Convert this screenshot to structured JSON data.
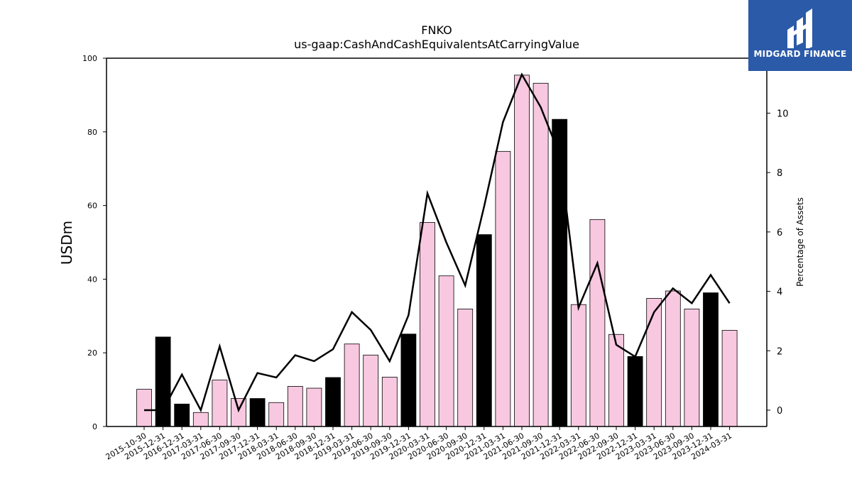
{
  "chart_data": {
    "type": "bar",
    "title": "FNKO",
    "subtitle": "us-gaap:CashAndCashEquivalentsAtCarryingValue",
    "ylabel": "USDm",
    "y2label": "Percentage of Assets",
    "ylim": [
      0,
      100
    ],
    "y2lim": [
      -0.55,
      11.85
    ],
    "yticks": [
      0,
      20,
      40,
      60,
      80,
      100
    ],
    "y2ticks": [
      0,
      2,
      4,
      6,
      8,
      10
    ],
    "categories": [
      "2015-10-30",
      "2015-12-31",
      "2016-12-31",
      "2017-03-31",
      "2017-06-30",
      "2017-09-30",
      "2017-12-31",
      "2018-03-31",
      "2018-06-30",
      "2018-09-30",
      "2018-12-31",
      "2019-03-31",
      "2019-06-30",
      "2019-09-30",
      "2019-12-31",
      "2020-03-31",
      "2020-06-30",
      "2020-09-30",
      "2020-12-31",
      "2021-03-31",
      "2021-06-30",
      "2021-09-30",
      "2021-12-31",
      "2022-03-31",
      "2022-06-30",
      "2022-09-30",
      "2022-12-31",
      "2023-03-31",
      "2023-06-30",
      "2023-09-30",
      "2023-12-31",
      "2024-03-31"
    ],
    "series": [
      {
        "values": [
          10.1,
          24.3,
          6.1,
          3.8,
          12.6,
          7.6,
          7.6,
          6.5,
          10.9,
          10.4,
          13.3,
          22.4,
          19.4,
          13.4,
          25.1,
          55.4,
          40.9,
          31.9,
          52.1,
          74.7,
          95.4,
          93.2,
          83.4,
          33.1,
          56.2,
          25.0,
          19.0,
          34.8,
          36.8,
          31.9,
          36.3,
          26.1
        ],
        "colors": [
          "#f8c8e0",
          "#000000",
          "#000000",
          "#f8c8e0",
          "#f8c8e0",
          "#f8c8e0",
          "#000000",
          "#f8c8e0",
          "#f8c8e0",
          "#f8c8e0",
          "#000000",
          "#f8c8e0",
          "#f8c8e0",
          "#f8c8e0",
          "#000000",
          "#f8c8e0",
          "#f8c8e0",
          "#f8c8e0",
          "#000000",
          "#f8c8e0",
          "#f8c8e0",
          "#f8c8e0",
          "#000000",
          "#f8c8e0",
          "#f8c8e0",
          "#f8c8e0",
          "#000000",
          "#f8c8e0",
          "#f8c8e0",
          "#f8c8e0",
          "#000000",
          "#f8c8e0"
        ]
      },
      {
        "type": "line",
        "axis": "right",
        "values": [
          0.0,
          0.0,
          1.2,
          0.0,
          2.15,
          0.0,
          1.25,
          1.1,
          1.85,
          1.65,
          2.05,
          3.3,
          2.7,
          1.65,
          3.2,
          7.3,
          5.65,
          4.2,
          6.85,
          9.7,
          11.3,
          10.2,
          8.6,
          3.45,
          4.95,
          2.2,
          1.8,
          3.3,
          4.1,
          3.6,
          4.55,
          3.6
        ]
      }
    ],
    "grid": false,
    "legend": "none"
  },
  "logo": {
    "text": "MIDGARD FINANCE",
    "background": "#2b5aa8"
  }
}
